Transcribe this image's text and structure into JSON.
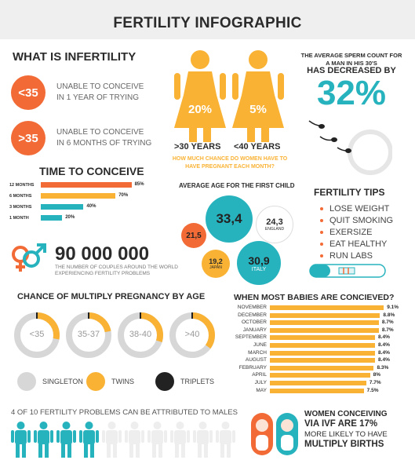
{
  "title": "FERTILITY INFOGRAPHIC",
  "colors": {
    "orange": "#f26b36",
    "yellow": "#f9b233",
    "teal": "#27b3be",
    "dark": "#222222",
    "grey": "#d7d7d7"
  },
  "infertility": {
    "heading": "WHAT IS INFERTILITY",
    "items": [
      {
        "badge": "<35",
        "line1": "UNABLE TO CONCEIVE",
        "line2": "IN 1 YEAR OF TRYING"
      },
      {
        "badge": ">35",
        "line1": "UNABLE TO CONCEIVE",
        "line2": "IN 6 MONTHS OF TRYING"
      }
    ]
  },
  "women": {
    "left_pct": "20%",
    "right_pct": "5%",
    "left_label": ">30 YEARS",
    "right_label": "<40 YEARS",
    "question": "HOW MUCH CHANCE DO WOMEN HAVE TO HAVE PREGNANT EACH MONTH?"
  },
  "sperm": {
    "text": "THE AVERAGE SPERM COUNT FOR A MAN IN HIS 30'S",
    "text2": "HAS DECREASED BY",
    "value": "32%"
  },
  "time_to_conceive": {
    "heading": "TIME TO CONCEIVE",
    "chart_data": {
      "type": "bar",
      "categories": [
        "12 MONTHS",
        "6 MONTHS",
        "3 MONTHS",
        "1 MONTH"
      ],
      "values": [
        85,
        70,
        40,
        20
      ],
      "labels": [
        "85%",
        "70%",
        "40%",
        "20%"
      ],
      "colors": [
        "#f26b36",
        "#f9b233",
        "#27b3be",
        "#27b3be"
      ]
    }
  },
  "average_age": {
    "heading": "AVERAGE AGE FOR THE FIRST CHILD",
    "bubbles": [
      {
        "value": "33,4",
        "country": ""
      },
      {
        "value": "24,3",
        "country": "ENGLAND"
      },
      {
        "value": "21,5",
        "country": ""
      },
      {
        "value": "19,2",
        "country": "JAPAN"
      },
      {
        "value": "30,9",
        "country": "ITALY"
      }
    ]
  },
  "tips": {
    "heading": "FERTILITY TIPS",
    "items": [
      "LOSE WEIGHT",
      "QUIT SMOKING",
      "EXERSIZE",
      "EAT HEALTHY",
      "RUN LABS"
    ]
  },
  "couples": {
    "number": "90 000 000",
    "caption1": "THE NUMBER OF COUPLES AROUND THE WORLD",
    "caption2": "EXPERIENCING FERTILITY PROBLEMS"
  },
  "multiple": {
    "heading": "CHANCE OF MULTIPLY PREGNANCY BY AGE",
    "groups": [
      {
        "label": "<35",
        "share": 0.28
      },
      {
        "label": "35-37",
        "share": 0.22
      },
      {
        "label": "38-40",
        "share": 0.3
      },
      {
        "label": ">40",
        "share": 0.35
      }
    ],
    "legend": [
      {
        "label": "SINGLETON",
        "color": "#d7d7d7"
      },
      {
        "label": "TWINS",
        "color": "#f9b233"
      },
      {
        "label": "TRIPLETS",
        "color": "#222222"
      }
    ]
  },
  "babies": {
    "heading": "WHEN MOST BABIES ARE CONCIEVED?",
    "chart_data": {
      "type": "bar",
      "categories": [
        "NOVEMBER",
        "DECEMBER",
        "OCTOBER",
        "JANUARY",
        "SEPTEMBER",
        "JUNE",
        "MARCH",
        "AUGUST",
        "FEBRUARY",
        "APRIL",
        "JULY",
        "MAY"
      ],
      "values": [
        9.1,
        8.8,
        8.7,
        8.7,
        8.4,
        8.4,
        8.4,
        8.4,
        8.3,
        8,
        7.7,
        7.5
      ],
      "labels": [
        "9.1%",
        "8.8%",
        "8.7%",
        "8.7%",
        "8.4%",
        "8.4%",
        "8.4%",
        "8.4%",
        "8.3%",
        "8%",
        "7.7%",
        "7.5%"
      ]
    }
  },
  "males": {
    "heading": "4 OF 10 FERTILITY PROBLEMS CAN BE ATTRIBUTED TO MALES",
    "highlighted": 4,
    "total": 10
  },
  "ivf": {
    "line1": "WOMEN CONCEIVING",
    "line2": "VIA IVF ARE 17%",
    "line3": "MORE LIKELY TO HAVE",
    "line4": "MULTIPLY BIRTHS"
  }
}
